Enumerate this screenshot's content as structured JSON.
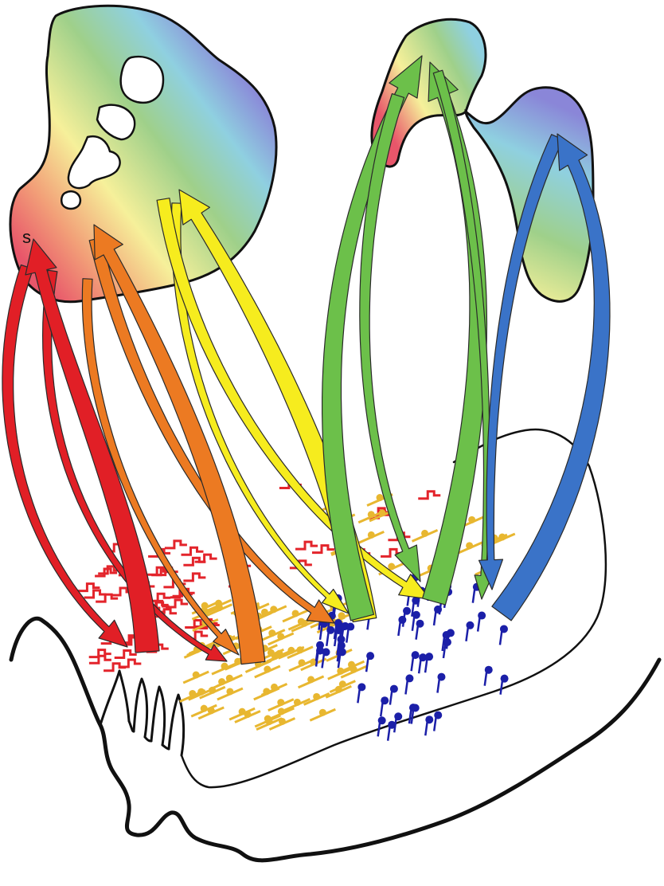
{
  "figure": {
    "region_label": "s"
  },
  "colors": {
    "red": "#e11f26",
    "orange": "#ec7a22",
    "yellow": "#f6ec1e",
    "green": "#6cc04a",
    "blue": "#3a73c8",
    "outline": "#111111",
    "marker_red": "#e3242b",
    "marker_gold": "#e8b730",
    "marker_navy": "#1b1fa8"
  },
  "arrows": [
    {
      "id": "red-descending-a",
      "color": "red",
      "direction": "down",
      "weight": "medium"
    },
    {
      "id": "red-descending-b",
      "color": "red",
      "direction": "down",
      "weight": "thin"
    },
    {
      "id": "red-ascending",
      "color": "red",
      "direction": "up",
      "weight": "thick"
    },
    {
      "id": "orange-descending-a",
      "color": "orange",
      "direction": "down",
      "weight": "thin"
    },
    {
      "id": "orange-descending-b",
      "color": "orange",
      "direction": "down",
      "weight": "medium"
    },
    {
      "id": "orange-ascending",
      "color": "orange",
      "direction": "up",
      "weight": "thick"
    },
    {
      "id": "yellow-descending-a",
      "color": "yellow",
      "direction": "down",
      "weight": "thin"
    },
    {
      "id": "yellow-descending-b",
      "color": "yellow",
      "direction": "down",
      "weight": "medium"
    },
    {
      "id": "yellow-ascending",
      "color": "yellow",
      "direction": "up",
      "weight": "thick"
    },
    {
      "id": "green-ascending-a",
      "color": "green",
      "direction": "up",
      "weight": "thick"
    },
    {
      "id": "green-descending-a",
      "color": "green",
      "direction": "down",
      "weight": "medium"
    },
    {
      "id": "green-ascending-b",
      "color": "green",
      "direction": "up",
      "weight": "thick"
    },
    {
      "id": "green-descending-b",
      "color": "green",
      "direction": "down",
      "weight": "thin"
    },
    {
      "id": "blue-descending",
      "color": "blue",
      "direction": "down",
      "weight": "medium"
    },
    {
      "id": "blue-ascending",
      "color": "blue",
      "direction": "up",
      "weight": "thick"
    }
  ]
}
